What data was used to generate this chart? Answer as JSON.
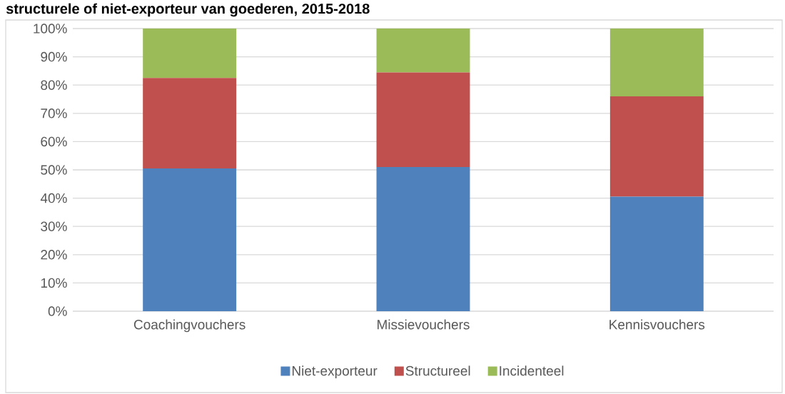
{
  "chart_data": {
    "type": "bar",
    "stacked": true,
    "title": "structurele of niet-exporteur van goederen, 2015-2018",
    "categories": [
      "Coachingvouchers",
      "Missievouchers",
      "Kennisvouchers"
    ],
    "series": [
      {
        "name": "Niet-exporteur",
        "color": "#4f81bd",
        "values": [
          50.5,
          51,
          40.5
        ]
      },
      {
        "name": "Structureel",
        "color": "#c0504d",
        "values": [
          32,
          33.5,
          35.5
        ]
      },
      {
        "name": "Incidenteel",
        "color": "#9bbb59",
        "values": [
          17.5,
          15.5,
          24
        ]
      }
    ],
    "ylim": [
      0,
      100
    ],
    "yticks": [
      {
        "value": 0,
        "label": "0%"
      },
      {
        "value": 10,
        "label": "10%"
      },
      {
        "value": 20,
        "label": "20%"
      },
      {
        "value": 30,
        "label": "30%"
      },
      {
        "value": 40,
        "label": "40%"
      },
      {
        "value": 50,
        "label": "50%"
      },
      {
        "value": 60,
        "label": "60%"
      },
      {
        "value": 70,
        "label": "70%"
      },
      {
        "value": 80,
        "label": "80%"
      },
      {
        "value": 90,
        "label": "90%"
      },
      {
        "value": 100,
        "label": "100%"
      }
    ],
    "grid": "y",
    "legend": "bottom"
  }
}
